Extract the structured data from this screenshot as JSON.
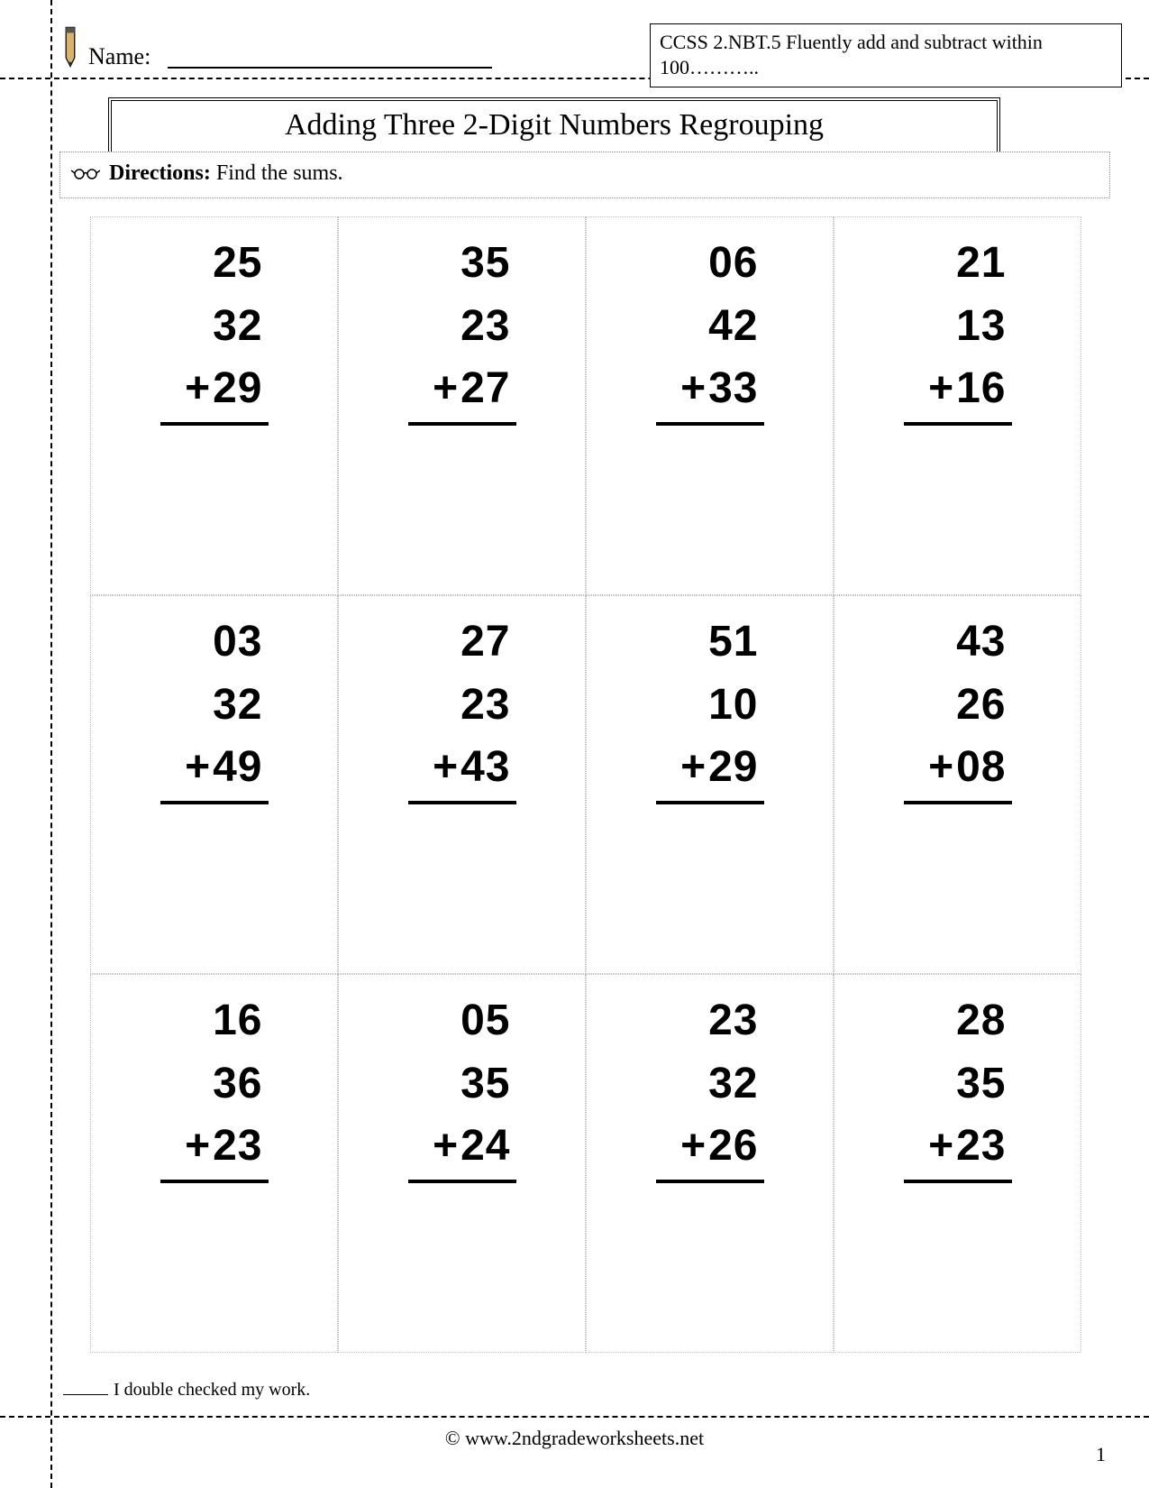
{
  "header": {
    "name_label": "Name:",
    "ccss_text": "CCSS  2.NBT.5  Fluently add and subtract within 100……….."
  },
  "title": "Adding Three 2-Digit Numbers Regrouping",
  "directions": {
    "label": "Directions:",
    "text": " Find the sums."
  },
  "problems": {
    "type": "vertical-addition-grid",
    "rows": 3,
    "cols": 4,
    "operator": "+",
    "number_font": "Arial",
    "number_fontsize": 48,
    "cell_border": "1.5px dotted #bbbbbb",
    "underline_color": "#000000",
    "cells": [
      [
        {
          "n1": "25",
          "n2": "32",
          "n3": "29"
        },
        {
          "n1": "35",
          "n2": "23",
          "n3": "27"
        },
        {
          "n1": "06",
          "n2": "42",
          "n3": "33"
        },
        {
          "n1": "21",
          "n2": "13",
          "n3": "16"
        }
      ],
      [
        {
          "n1": "03",
          "n2": "32",
          "n3": "49"
        },
        {
          "n1": "27",
          "n2": "23",
          "n3": "43"
        },
        {
          "n1": "51",
          "n2": "10",
          "n3": "29"
        },
        {
          "n1": "43",
          "n2": "26",
          "n3": "08"
        }
      ],
      [
        {
          "n1": "16",
          "n2": "36",
          "n3": "23"
        },
        {
          "n1": "05",
          "n2": "35",
          "n3": "24"
        },
        {
          "n1": "23",
          "n2": "32",
          "n3": "26"
        },
        {
          "n1": "28",
          "n2": "35",
          "n3": "23"
        }
      ]
    ]
  },
  "checked_text": "I double checked my work.",
  "footer": "© www.2ndgradeworksheets.net",
  "page_number": "1",
  "colors": {
    "text": "#000000",
    "background": "#ffffff",
    "dotted_border": "#bbbbbb"
  }
}
